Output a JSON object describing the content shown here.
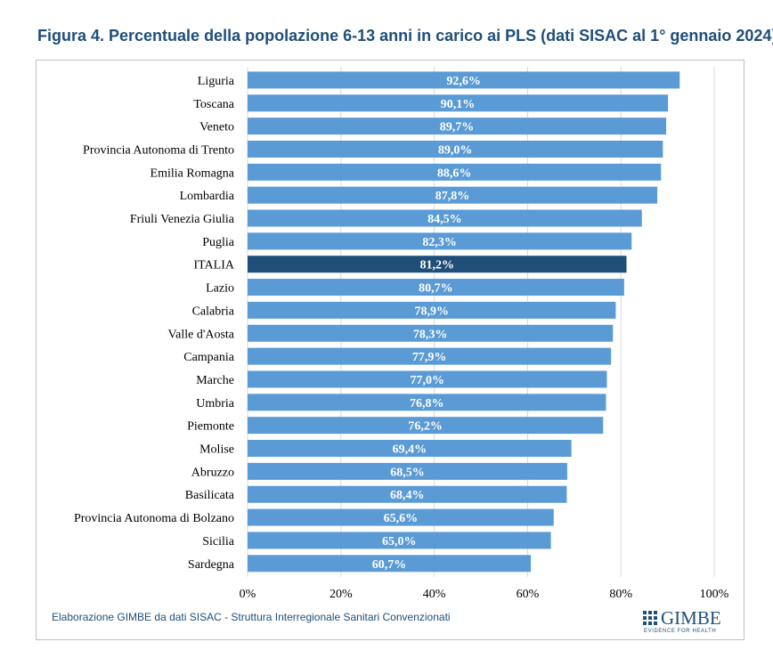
{
  "title": "Figura 4. Percentuale della popolazione 6-13 anni in carico ai PLS (dati SISAC al 1° gennaio 2024)",
  "source": "Elaborazione GIMBE da dati SISAC - Struttura Interregionale Sanitari Convenzionati",
  "logo": {
    "word": "GIMBE",
    "tagline": "EVIDENCE FOR HEALTH"
  },
  "colors": {
    "bar": "#5b9bd5",
    "highlight": "#1f4e79",
    "grid": "#d9d9d9",
    "title": "#1f4e79"
  },
  "chart_data": {
    "type": "bar",
    "orientation": "horizontal",
    "categories": [
      "Liguria",
      "Toscana",
      "Veneto",
      "Provincia Autonoma di Trento",
      "Emilia Romagna",
      "Lombardia",
      "Friuli Venezia Giulia",
      "Puglia",
      "ITALIA",
      "Lazio",
      "Calabria",
      "Valle d'Aosta",
      "Campania",
      "Marche",
      "Umbria",
      "Piemonte",
      "Molise",
      "Abruzzo",
      "Basilicata",
      "Provincia Autonoma di Bolzano",
      "Sicilia",
      "Sardegna"
    ],
    "values": [
      92.6,
      90.1,
      89.7,
      89.0,
      88.6,
      87.8,
      84.5,
      82.3,
      81.2,
      80.7,
      78.9,
      78.3,
      77.9,
      77.0,
      76.8,
      76.2,
      69.4,
      68.5,
      68.4,
      65.6,
      65.0,
      60.7
    ],
    "value_labels": [
      "92,6%",
      "90,1%",
      "89,7%",
      "89,0%",
      "88,6%",
      "87,8%",
      "84,5%",
      "82,3%",
      "81,2%",
      "80,7%",
      "78,9%",
      "78,3%",
      "77,9%",
      "77,0%",
      "76,8%",
      "76,2%",
      "69,4%",
      "68,5%",
      "68,4%",
      "65,6%",
      "65,0%",
      "60,7%"
    ],
    "highlight": "ITALIA",
    "xlim": [
      0,
      100
    ],
    "ticks": [
      0,
      20,
      40,
      60,
      80,
      100
    ],
    "tick_labels": [
      "0%",
      "20%",
      "40%",
      "60%",
      "80%",
      "100%"
    ],
    "grid": true,
    "legend": "none"
  }
}
